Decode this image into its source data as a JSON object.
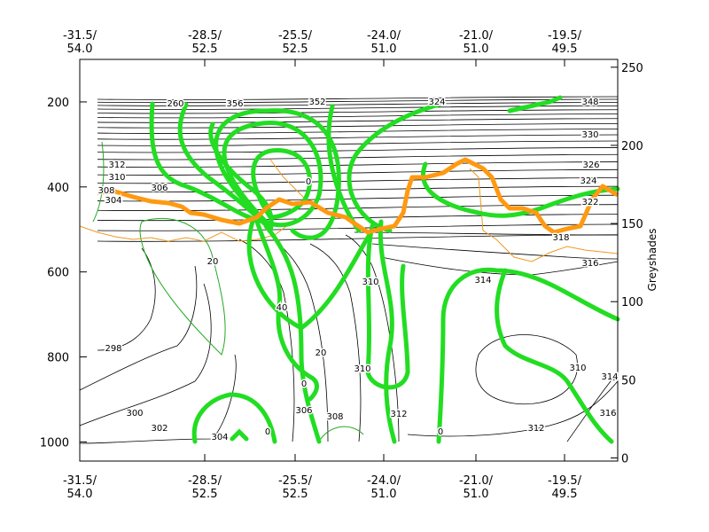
{
  "chart_data": {
    "type": "contour",
    "ylim": [
      1045,
      100
    ],
    "yticks": [
      200,
      400,
      600,
      800,
      1000
    ],
    "y2label": "Greyshades",
    "y2lim": [
      -2,
      255
    ],
    "y2ticks": [
      0,
      50,
      100,
      150,
      200,
      250
    ],
    "x_labels": [
      [
        "-31.5/",
        "54.0"
      ],
      [
        "-28.5/",
        "52.5"
      ],
      [
        "-25.5/",
        "52.5"
      ],
      [
        "-24.0/",
        "51.0"
      ],
      [
        "-21.0/",
        "51.0"
      ],
      [
        "-19.5/",
        "49.5"
      ]
    ],
    "contour_labels": [
      "298",
      "300",
      "302",
      "304",
      "306",
      "308",
      "304",
      "310",
      "312",
      "306",
      "308",
      "310",
      "312",
      "310",
      "314",
      "316",
      "318",
      "322",
      "324",
      "326",
      "330",
      "348",
      "312",
      "310",
      "314",
      "316",
      "0",
      "0",
      "0",
      "20",
      "40",
      "20",
      "0",
      "260",
      "356",
      "352",
      "324"
    ]
  }
}
